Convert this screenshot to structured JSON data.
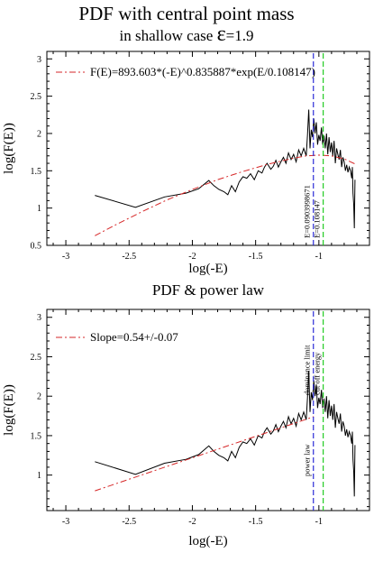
{
  "page": {
    "title": "PDF with central point mass",
    "subtitle_prefix": "in shallow case ",
    "subtitle_symbol": "ε",
    "subtitle_suffix": "=1.9"
  },
  "colors": {
    "data_line": "#000000",
    "fit_line": "#d62728",
    "dominance_line": "#2b2bd6",
    "cutoff_line": "#22cc22"
  },
  "chart_data": [
    {
      "type": "line",
      "title": "",
      "xlabel": "log(-E)",
      "ylabel": "log(F(E))",
      "xlim": [
        -3.15,
        -0.6
      ],
      "ylim": [
        0.5,
        3.1
      ],
      "xticks": [
        -3,
        -2.5,
        -2,
        -1.5,
        -1
      ],
      "yticks": [
        0.5,
        1,
        1.5,
        2,
        2.5,
        3
      ],
      "xtick_labels": [
        "-3",
        "-2.5",
        "-2",
        "-1.5",
        "-1"
      ],
      "ytick_labels": [
        "0.5",
        "1",
        "1.5",
        "2",
        "2.5",
        "3"
      ],
      "grid": false,
      "legend": {
        "position": "top-left",
        "entries": [
          {
            "label": "F(E)=893.603*(-E)^0.835887*exp(E/0.108147)",
            "series": "fit",
            "style": "dash-dot"
          }
        ]
      },
      "series": [
        {
          "name": "",
          "role": "data",
          "style": "solid",
          "x": [
            -2.77,
            -2.45,
            -2.22,
            -2.05,
            -1.95,
            -1.87,
            -1.83,
            -1.79,
            -1.75,
            -1.72,
            -1.69,
            -1.66,
            -1.63,
            -1.6,
            -1.57,
            -1.54,
            -1.51,
            -1.48,
            -1.45,
            -1.43,
            -1.41,
            -1.38,
            -1.36,
            -1.34,
            -1.32,
            -1.3,
            -1.28,
            -1.26,
            -1.24,
            -1.22,
            -1.2,
            -1.18,
            -1.16,
            -1.14,
            -1.12,
            -1.1,
            -1.09,
            -1.08,
            -1.07,
            -1.06,
            -1.05,
            -1.04,
            -1.03,
            -1.02,
            -1.01,
            -1.0,
            -0.99,
            -0.98,
            -0.97,
            -0.96,
            -0.95,
            -0.94,
            -0.93,
            -0.92,
            -0.91,
            -0.9,
            -0.89,
            -0.88,
            -0.87,
            -0.86,
            -0.85,
            -0.84,
            -0.83,
            -0.82,
            -0.81,
            -0.8,
            -0.79,
            -0.78,
            -0.77,
            -0.76,
            -0.75,
            -0.74,
            -0.735,
            -0.73,
            -0.725,
            -0.72,
            -0.715
          ],
          "y": [
            1.17,
            1.01,
            1.15,
            1.2,
            1.26,
            1.37,
            1.3,
            1.25,
            1.22,
            1.18,
            1.3,
            1.22,
            1.35,
            1.42,
            1.4,
            1.46,
            1.38,
            1.5,
            1.47,
            1.55,
            1.6,
            1.52,
            1.56,
            1.64,
            1.55,
            1.62,
            1.68,
            1.6,
            1.74,
            1.65,
            1.72,
            1.62,
            1.78,
            1.7,
            1.8,
            1.7,
            1.98,
            2.32,
            1.8,
            2.05,
            1.95,
            2.2,
            2.0,
            2.15,
            1.85,
            1.98,
            1.9,
            2.08,
            1.85,
            1.97,
            1.8,
            2.0,
            1.72,
            1.95,
            1.75,
            1.88,
            1.7,
            1.9,
            1.6,
            1.8,
            1.72,
            1.65,
            1.78,
            1.55,
            1.68,
            1.62,
            1.5,
            1.58,
            1.48,
            1.55,
            1.5,
            1.4,
            1.55,
            1.2,
            1.05,
            0.73,
            1.38
          ]
        },
        {
          "name": "F(E)=893.603*(-E)^0.835887*exp(E/0.108147)",
          "role": "fit",
          "style": "dash-dot",
          "x": [
            -2.77,
            -2.6,
            -2.4,
            -2.2,
            -2.0,
            -1.8,
            -1.6,
            -1.4,
            -1.2,
            -1.1,
            -1.0,
            -0.9,
            -0.8,
            -0.7
          ],
          "y": [
            0.63,
            0.78,
            0.95,
            1.11,
            1.25,
            1.38,
            1.49,
            1.59,
            1.67,
            1.7,
            1.71,
            1.7,
            1.66,
            1.58
          ]
        }
      ],
      "vertical_lines": [
        {
          "x": -1.0435,
          "label": "E=0.0903998671",
          "style": "dashed",
          "role": "dominance"
        },
        {
          "x": -0.966,
          "label": "E=0.108147",
          "style": "dashed",
          "role": "cutoff"
        }
      ]
    },
    {
      "type": "line",
      "title": "PDF & power law",
      "xlabel": "log(-E)",
      "ylabel": "log(F(E))",
      "xlim": [
        -3.15,
        -0.6
      ],
      "ylim": [
        0.55,
        3.1
      ],
      "xticks": [
        -3,
        -2.5,
        -2,
        -1.5,
        -1
      ],
      "yticks": [
        1,
        1.5,
        2,
        2.5,
        3
      ],
      "xtick_labels": [
        "-3",
        "-2.5",
        "-2",
        "-1.5",
        "-1"
      ],
      "ytick_labels": [
        "1",
        "1.5",
        "2",
        "2.5",
        "3"
      ],
      "grid": false,
      "legend": {
        "position": "top-left",
        "entries": [
          {
            "label": "Slope=0.54+/-0.07",
            "series": "fit",
            "style": "dash-dot"
          }
        ]
      },
      "series": [
        {
          "name": "",
          "role": "data",
          "style": "solid",
          "x": [
            -2.77,
            -2.45,
            -2.22,
            -2.05,
            -1.95,
            -1.87,
            -1.83,
            -1.79,
            -1.75,
            -1.72,
            -1.69,
            -1.66,
            -1.63,
            -1.6,
            -1.57,
            -1.54,
            -1.51,
            -1.48,
            -1.45,
            -1.43,
            -1.41,
            -1.38,
            -1.36,
            -1.34,
            -1.32,
            -1.3,
            -1.28,
            -1.26,
            -1.24,
            -1.22,
            -1.2,
            -1.18,
            -1.16,
            -1.14,
            -1.12,
            -1.1,
            -1.09,
            -1.08,
            -1.07,
            -1.06,
            -1.05,
            -1.04,
            -1.03,
            -1.02,
            -1.01,
            -1.0,
            -0.99,
            -0.98,
            -0.97,
            -0.96,
            -0.95,
            -0.94,
            -0.93,
            -0.92,
            -0.91,
            -0.9,
            -0.89,
            -0.88,
            -0.87,
            -0.86,
            -0.85,
            -0.84,
            -0.83,
            -0.82,
            -0.81,
            -0.8,
            -0.79,
            -0.78,
            -0.77,
            -0.76,
            -0.75,
            -0.74,
            -0.735,
            -0.73,
            -0.725,
            -0.72,
            -0.715
          ],
          "y": [
            1.17,
            1.01,
            1.15,
            1.2,
            1.26,
            1.37,
            1.3,
            1.25,
            1.22,
            1.18,
            1.3,
            1.22,
            1.35,
            1.42,
            1.4,
            1.46,
            1.38,
            1.5,
            1.47,
            1.55,
            1.6,
            1.52,
            1.56,
            1.64,
            1.55,
            1.62,
            1.68,
            1.6,
            1.74,
            1.65,
            1.72,
            1.62,
            1.78,
            1.7,
            1.8,
            1.7,
            1.98,
            2.32,
            1.8,
            2.05,
            1.95,
            2.2,
            2.0,
            2.15,
            1.85,
            1.98,
            1.9,
            2.08,
            1.85,
            1.97,
            1.8,
            2.0,
            1.72,
            1.95,
            1.75,
            1.88,
            1.7,
            1.9,
            1.6,
            1.8,
            1.72,
            1.65,
            1.78,
            1.55,
            1.68,
            1.62,
            1.5,
            1.58,
            1.48,
            1.55,
            1.5,
            1.4,
            1.55,
            1.2,
            1.05,
            0.73,
            1.38
          ]
        },
        {
          "name": "Slope=0.54+/-0.07",
          "role": "fit",
          "style": "dash-dot",
          "x": [
            -2.77,
            -1.04
          ],
          "y": [
            0.8,
            1.74
          ]
        }
      ],
      "vertical_lines": [
        {
          "x": -1.0435,
          "label": "dominance limit",
          "label_position": "top",
          "label2": "power law",
          "label2_position": "bottom",
          "style": "dashed",
          "role": "dominance"
        },
        {
          "x": -0.966,
          "label": "cut off energy",
          "label_position": "top",
          "style": "dashed",
          "role": "cutoff"
        }
      ]
    }
  ]
}
